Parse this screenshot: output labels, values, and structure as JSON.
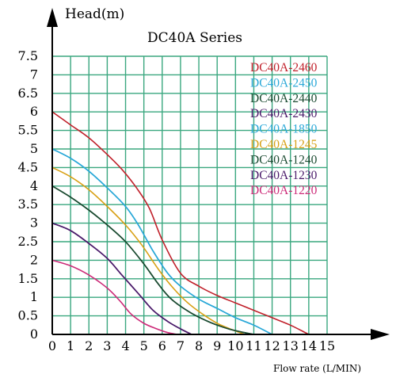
{
  "chart_data": {
    "type": "line",
    "title": "DC40A Series",
    "ylabel": "Head(m)",
    "xlabel": "Flow rate (L/MIN)",
    "xlim": [
      0,
      15
    ],
    "ylim": [
      0,
      7.5
    ],
    "x_ticks": [
      "0",
      "1",
      "2",
      "3",
      "4",
      "5",
      "6",
      "7",
      "8",
      "9",
      "10",
      "11",
      "12",
      "13",
      "14",
      "15"
    ],
    "y_ticks": [
      "0",
      "0.5",
      "1",
      "1.5",
      "2",
      "2.5",
      "3",
      "3.5",
      "4",
      "4.5",
      "5",
      "5.5",
      "6",
      "6.5",
      "7",
      "7.5"
    ],
    "grid": true,
    "grid_color": "#3aa77f",
    "legend_position": "top-right",
    "series": [
      {
        "name": "DC40A-2460",
        "color": "#c0202a",
        "x": [
          0,
          1,
          2,
          3,
          3.8,
          4.6,
          5.3,
          6,
          7,
          8,
          9,
          10,
          11,
          12,
          13,
          14
        ],
        "y": [
          6.0,
          5.65,
          5.3,
          4.85,
          4.45,
          3.95,
          3.4,
          2.55,
          1.65,
          1.3,
          1.05,
          0.85,
          0.65,
          0.45,
          0.25,
          0.0
        ]
      },
      {
        "name": "DC40A-2450",
        "color": "#2aa8d8",
        "x": [
          0,
          1,
          2,
          3,
          4,
          4.7,
          5.5,
          6.3,
          7,
          8,
          9,
          10,
          11,
          12
        ],
        "y": [
          5.0,
          4.75,
          4.4,
          3.95,
          3.45,
          2.95,
          2.25,
          1.65,
          1.3,
          0.95,
          0.7,
          0.45,
          0.25,
          0.0
        ]
      },
      {
        "name": "DC40A-2440",
        "color": "#1a4a30",
        "x": [
          0,
          1,
          2,
          3,
          4,
          5,
          5.8,
          6.5,
          7.5,
          8.5,
          9.3,
          10,
          11
        ],
        "y": [
          4.0,
          3.7,
          3.35,
          2.95,
          2.5,
          1.9,
          1.35,
          0.95,
          0.6,
          0.35,
          0.2,
          0.1,
          0.0
        ]
      },
      {
        "name": "DC40A-2430",
        "color": "#4a1a6a",
        "x": [
          0,
          1,
          2,
          3,
          3.8,
          4.7,
          5.5,
          6.3,
          7,
          7.6
        ],
        "y": [
          3.0,
          2.8,
          2.45,
          2.05,
          1.6,
          1.1,
          0.65,
          0.35,
          0.15,
          0.0
        ]
      },
      {
        "name": "DC40A-1850",
        "color": "#2aa8d8",
        "x": [
          0,
          1,
          2,
          3,
          4,
          4.7,
          5.5,
          6.3,
          7,
          8,
          9,
          10,
          11,
          12
        ],
        "y": [
          5.0,
          4.75,
          4.4,
          3.95,
          3.45,
          2.95,
          2.25,
          1.65,
          1.3,
          0.95,
          0.7,
          0.45,
          0.25,
          0.0
        ]
      },
      {
        "name": "DC40A-1245",
        "color": "#d8a014",
        "x": [
          0,
          1,
          2,
          3,
          4,
          4.9,
          5.8,
          6.6,
          7.4,
          8.2,
          9,
          9.7,
          10.5
        ],
        "y": [
          4.5,
          4.25,
          3.9,
          3.45,
          2.95,
          2.4,
          1.75,
          1.25,
          0.85,
          0.55,
          0.3,
          0.15,
          0.0
        ]
      },
      {
        "name": "DC40A-1240",
        "color": "#1a4a30",
        "x": [
          0,
          1,
          2,
          3,
          4,
          5,
          5.8,
          6.5,
          7.5,
          8.5,
          9.3,
          10,
          11
        ],
        "y": [
          4.0,
          3.7,
          3.35,
          2.95,
          2.5,
          1.9,
          1.35,
          0.95,
          0.6,
          0.35,
          0.2,
          0.1,
          0.0
        ]
      },
      {
        "name": "DC40A-1230",
        "color": "#4a1a6a",
        "x": [
          0,
          1,
          2,
          3,
          3.8,
          4.7,
          5.5,
          6.3,
          7,
          7.6
        ],
        "y": [
          3.0,
          2.8,
          2.45,
          2.05,
          1.6,
          1.1,
          0.65,
          0.35,
          0.15,
          0.0
        ]
      },
      {
        "name": "DC40A-1220",
        "color": "#cc2a78",
        "x": [
          0,
          1,
          2,
          3,
          3.7,
          4.3,
          5,
          5.7,
          6.3,
          6.8
        ],
        "y": [
          2.0,
          1.85,
          1.6,
          1.25,
          0.9,
          0.55,
          0.3,
          0.15,
          0.05,
          0.0
        ]
      }
    ]
  }
}
